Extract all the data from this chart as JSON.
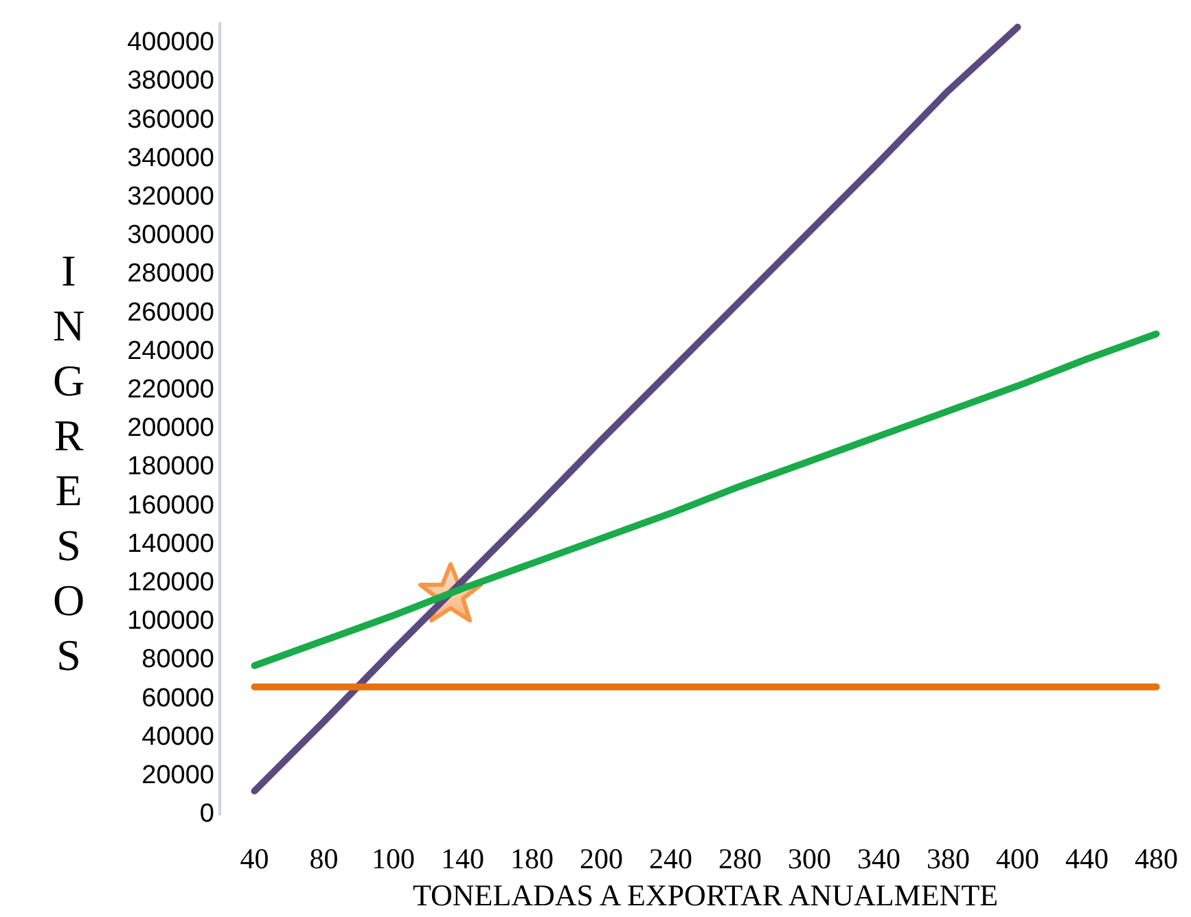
{
  "chart_data": {
    "type": "line",
    "xlabel": "TONELADAS A EXPORTAR ANUALMENTE",
    "ylabel": "INGRESOS",
    "categories": [
      "40",
      "80",
      "100",
      "140",
      "180",
      "200",
      "240",
      "280",
      "300",
      "340",
      "380",
      "400",
      "440",
      "480"
    ],
    "series": [
      {
        "color": "#5b4a80",
        "values": [
          12000,
          48000,
          85000,
          121000,
          157000,
          194000,
          230000,
          266000,
          302000,
          338000,
          375000,
          408000,
          null,
          null
        ]
      },
      {
        "color": "#1aab4b",
        "values": [
          77000,
          90000,
          103000,
          117000,
          130000,
          143000,
          156000,
          170000,
          183000,
          196000,
          209000,
          222000,
          236000,
          249000
        ]
      },
      {
        "color": "#e8700f",
        "values": [
          66000,
          66000,
          66000,
          66000,
          66000,
          66000,
          66000,
          66000,
          66000,
          66000,
          66000,
          66000,
          66000,
          66000
        ]
      }
    ],
    "ylim": [
      0,
      410000
    ],
    "yticks": [
      0,
      20000,
      40000,
      60000,
      80000,
      100000,
      120000,
      140000,
      160000,
      180000,
      200000,
      220000,
      240000,
      260000,
      280000,
      300000,
      320000,
      340000,
      360000,
      380000,
      400000
    ],
    "grid": false,
    "marker": "none"
  }
}
